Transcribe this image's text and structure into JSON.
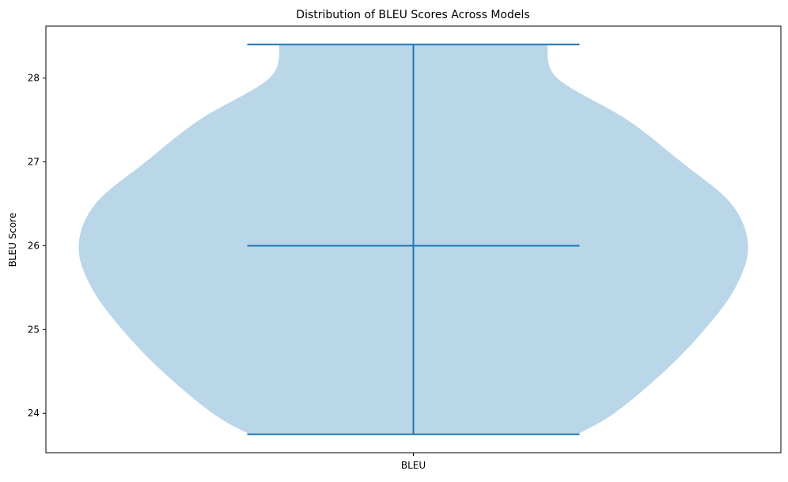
{
  "chart_data": {
    "type": "violin",
    "title": "Distribution of BLEU Scores Across Models",
    "xlabel": "",
    "ylabel": "BLEU Score",
    "categories": [
      "BLEU"
    ],
    "ylim": [
      23.53,
      28.62
    ],
    "yticks": [
      24,
      25,
      26,
      27,
      28
    ],
    "grid": false,
    "series": [
      {
        "category": "BLEU",
        "min": 23.75,
        "median": 26.0,
        "max": 28.4,
        "density_profile": [
          {
            "y": 23.75,
            "w": 0.49
          },
          {
            "y": 24.0,
            "w": 0.6
          },
          {
            "y": 24.5,
            "w": 0.75
          },
          {
            "y": 25.0,
            "w": 0.87
          },
          {
            "y": 25.5,
            "w": 0.962
          },
          {
            "y": 26.0,
            "w": 1.0
          },
          {
            "y": 26.5,
            "w": 0.95
          },
          {
            "y": 27.0,
            "w": 0.8
          },
          {
            "y": 27.5,
            "w": 0.64
          },
          {
            "y": 28.0,
            "w": 0.43
          },
          {
            "y": 28.4,
            "w": 0.4
          }
        ]
      }
    ],
    "colors": {
      "violin_fill": "#bad6e9",
      "stat_lines": "#1f77b4",
      "axes": "#000000"
    }
  }
}
